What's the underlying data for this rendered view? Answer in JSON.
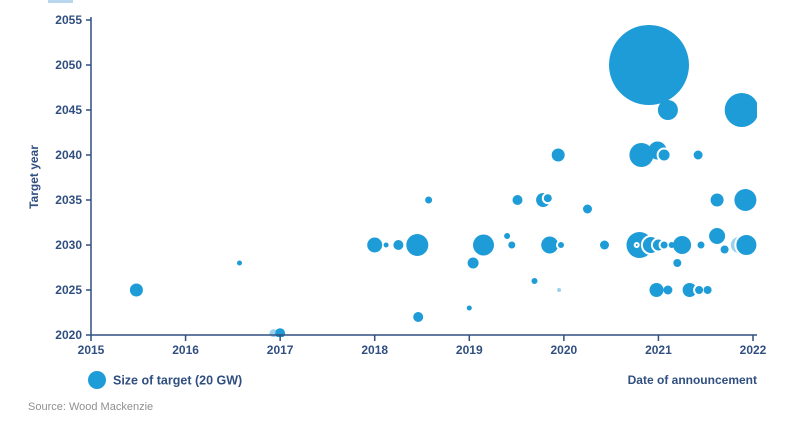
{
  "chart_data": {
    "type": "scatter",
    "title": "",
    "xlabel": "Date of announcement",
    "ylabel": "Target year",
    "xlim": [
      2015,
      2022
    ],
    "ylim": [
      2020,
      2055
    ],
    "x_ticks": [
      "2015",
      "2016",
      "2017",
      "2018",
      "2019",
      "2020",
      "2021",
      "2022"
    ],
    "y_ticks": [
      "2020",
      "2025",
      "2030",
      "2035",
      "2040",
      "2045",
      "2050",
      "2055"
    ],
    "grid": "off",
    "legend_position": "bottom-left",
    "legend_label": "Size of target (20 GW)",
    "source": "Source: Wood Mackenzie",
    "bubble_unit_note": "legend circle represents 20 GW",
    "points": [
      {
        "x": 2015.48,
        "y": 2025,
        "r": 6.5
      },
      {
        "x": 2016.57,
        "y": 2028,
        "r": 2.5
      },
      {
        "x": 2016.93,
        "y": 2020.2,
        "r": 4,
        "style": "light"
      },
      {
        "x": 2017.0,
        "y": 2020.2,
        "r": 5
      },
      {
        "x": 2018.0,
        "y": 2030,
        "r": 7.5
      },
      {
        "x": 2018.12,
        "y": 2030,
        "r": 2.5
      },
      {
        "x": 2018.25,
        "y": 2030,
        "r": 5
      },
      {
        "x": 2018.45,
        "y": 2030,
        "r": 11
      },
      {
        "x": 2018.46,
        "y": 2022,
        "r": 5
      },
      {
        "x": 2018.57,
        "y": 2035,
        "r": 3.5
      },
      {
        "x": 2019.0,
        "y": 2023,
        "r": 2.5
      },
      {
        "x": 2019.04,
        "y": 2028,
        "r": 5.5
      },
      {
        "x": 2019.15,
        "y": 2030,
        "r": 10.5
      },
      {
        "x": 2019.4,
        "y": 2031,
        "r": 3
      },
      {
        "x": 2019.45,
        "y": 2030,
        "r": 3.5
      },
      {
        "x": 2019.51,
        "y": 2035,
        "r": 5
      },
      {
        "x": 2019.69,
        "y": 2026,
        "r": 3
      },
      {
        "x": 2019.78,
        "y": 2035,
        "r": 7
      },
      {
        "x": 2019.83,
        "y": 2035.2,
        "r": 5,
        "style": "ring"
      },
      {
        "x": 2019.94,
        "y": 2040,
        "r": 6.5
      },
      {
        "x": 2019.85,
        "y": 2030,
        "r": 8.5
      },
      {
        "x": 2019.97,
        "y": 2030,
        "r": 4,
        "style": "ring"
      },
      {
        "x": 2019.95,
        "y": 2025,
        "r": 2,
        "style": "light"
      },
      {
        "x": 2020.25,
        "y": 2034,
        "r": 4.5
      },
      {
        "x": 2020.43,
        "y": 2030,
        "r": 4.5
      },
      {
        "x": 2020.9,
        "y": 2050,
        "r": 40
      },
      {
        "x": 2021.1,
        "y": 2045,
        "r": 10
      },
      {
        "x": 2020.82,
        "y": 2040,
        "r": 12
      },
      {
        "x": 2020.99,
        "y": 2040.5,
        "r": 9
      },
      {
        "x": 2021.06,
        "y": 2040,
        "r": 6.5,
        "style": "ring"
      },
      {
        "x": 2021.42,
        "y": 2040,
        "r": 4.5
      },
      {
        "x": 2020.8,
        "y": 2030,
        "r": 13
      },
      {
        "x": 2020.92,
        "y": 2030,
        "r": 9,
        "style": "ring"
      },
      {
        "x": 2021.0,
        "y": 2030,
        "r": 6.5,
        "style": "ring"
      },
      {
        "x": 2021.06,
        "y": 2030,
        "r": 4.5,
        "style": "ring"
      },
      {
        "x": 2020.77,
        "y": 2030,
        "r": 2,
        "style": "ring"
      },
      {
        "x": 2021.14,
        "y": 2030,
        "r": 3
      },
      {
        "x": 2021.25,
        "y": 2030,
        "r": 9
      },
      {
        "x": 2021.2,
        "y": 2028,
        "r": 4
      },
      {
        "x": 2021.45,
        "y": 2030,
        "r": 3.5
      },
      {
        "x": 2021.62,
        "y": 2031,
        "r": 8
      },
      {
        "x": 2021.7,
        "y": 2029.5,
        "r": 5,
        "style": "ring"
      },
      {
        "x": 2021.85,
        "y": 2030,
        "r": 8,
        "style": "light"
      },
      {
        "x": 2021.93,
        "y": 2030,
        "r": 11,
        "style": "ring"
      },
      {
        "x": 2020.98,
        "y": 2025,
        "r": 7
      },
      {
        "x": 2021.1,
        "y": 2025,
        "r": 4.5
      },
      {
        "x": 2021.33,
        "y": 2025,
        "r": 7
      },
      {
        "x": 2021.43,
        "y": 2025,
        "r": 5,
        "style": "ring"
      },
      {
        "x": 2021.52,
        "y": 2025,
        "r": 4
      },
      {
        "x": 2021.62,
        "y": 2035,
        "r": 6.5
      },
      {
        "x": 2021.92,
        "y": 2035,
        "r": 11
      },
      {
        "x": 2021.88,
        "y": 2045,
        "r": 17
      }
    ]
  },
  "colors": {
    "bubble": "#1e9cd7",
    "bubble_ring_stroke": "#ffffff",
    "axis": "#304f80",
    "tick_text": "#304f80",
    "axis_title_text": "#304f80",
    "legend_text": "#304f80",
    "source_text": "#909090",
    "top_artifact": "#b8d7ee",
    "background": "#ffffff"
  }
}
